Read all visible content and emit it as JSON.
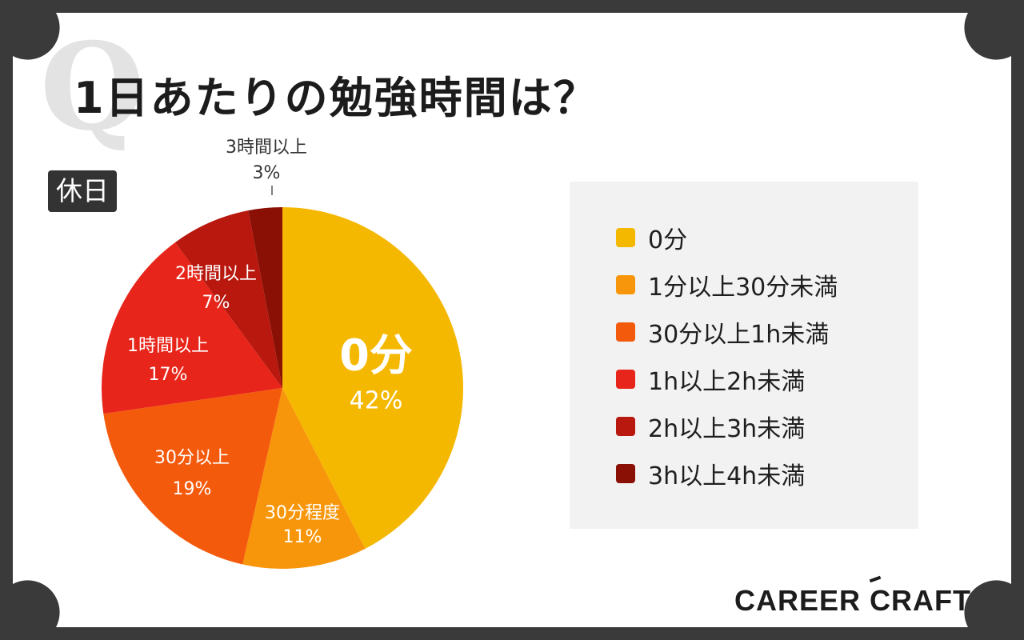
{
  "title": "1日あたりの勉強時間は？",
  "q_mark": "Q",
  "day_label": "休日",
  "brand": "CAREER CRAFT",
  "chart_data": {
    "type": "pie",
    "title": "1日あたりの勉強時間は？",
    "subtitle": "休日",
    "legend_position": "right",
    "slices": [
      {
        "name": "0分",
        "label": "0分",
        "value": 42,
        "value_label": "42%",
        "color": "#f5b800"
      },
      {
        "name": "1分以上30分未満",
        "label": "30分程度",
        "value": 11,
        "value_label": "11%",
        "color": "#f7960a"
      },
      {
        "name": "30分以上1h未満",
        "label": "30分以上",
        "value": 19,
        "value_label": "19%",
        "color": "#f45a0c"
      },
      {
        "name": "1h以上2h未満",
        "label": "1時間以上",
        "value": 17,
        "value_label": "17%",
        "color": "#e8251a"
      },
      {
        "name": "2h以上3h未満",
        "label": "2時間以上",
        "value": 7,
        "value_label": "7%",
        "color": "#b8180e"
      },
      {
        "name": "3h以上4h未満",
        "label": "3時間以上",
        "value": 3,
        "value_label": "3%",
        "color": "#8a1005"
      }
    ]
  },
  "legend": [
    {
      "label": "0分",
      "color": "#f5b800"
    },
    {
      "label": "1分以上30分未満",
      "color": "#f7960a"
    },
    {
      "label": "30分以上1h未満",
      "color": "#f45a0c"
    },
    {
      "label": "1h以上2h未満",
      "color": "#e8251a"
    },
    {
      "label": "2h以上3h未満",
      "color": "#b8180e"
    },
    {
      "label": "3h以上4h未満",
      "color": "#8a1005"
    }
  ]
}
